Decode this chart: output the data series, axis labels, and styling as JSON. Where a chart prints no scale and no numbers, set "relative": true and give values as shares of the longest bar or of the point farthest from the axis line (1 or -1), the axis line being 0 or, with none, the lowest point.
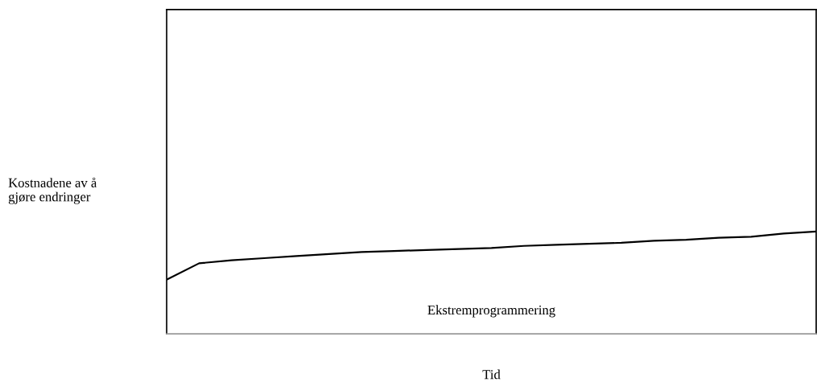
{
  "chart_data": {
    "type": "line",
    "relative": true,
    "xlabel": "Tid",
    "annotations": [
      "Ekstremprogrammering",
      "Kostnadene av å\ngjøre endringer"
    ],
    "categories": [
      null,
      null,
      null,
      null,
      null,
      null,
      null,
      null,
      null,
      null,
      null,
      null,
      null,
      null,
      null,
      null,
      null,
      null,
      null,
      null,
      null
    ],
    "series": [
      {
        "color": "#000000",
        "values": [
          0.53,
          0.69,
          0.72,
          0.74,
          0.76,
          0.78,
          0.8,
          0.81,
          0.82,
          0.83,
          0.84,
          0.86,
          0.87,
          0.88,
          0.89,
          0.91,
          0.92,
          0.94,
          0.95,
          0.98,
          1
        ]
      }
    ],
    "legend": false,
    "marker": "none",
    "line_style": "solid"
  }
}
